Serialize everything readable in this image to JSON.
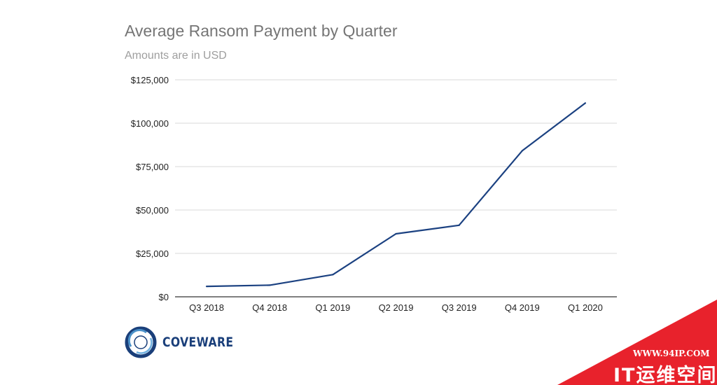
{
  "chart_data": {
    "type": "line",
    "title": "Average Ransom Payment by Quarter",
    "subtitle": "Amounts are in USD",
    "categories": [
      "Q3 2018",
      "Q4 2018",
      "Q1 2019",
      "Q2 2019",
      "Q3 2019",
      "Q4 2019",
      "Q1 2020"
    ],
    "series": [
      {
        "values": [
          6000,
          6700,
          12800,
          36300,
          41200,
          84100,
          111600
        ],
        "color": "#1b4181"
      }
    ],
    "ylim": [
      0,
      125000
    ],
    "yticks": [
      0,
      25000,
      50000,
      75000,
      100000,
      125000
    ],
    "ytick_labels": [
      "$0",
      "$25,000",
      "$50,000",
      "$75,000",
      "$100,000",
      "$125,000"
    ],
    "grid": true,
    "legend": "none"
  },
  "logo": {
    "text": "COVEWARE",
    "icon": "coveware-ring-logo-icon",
    "color": "#1a3f7a"
  },
  "watermark": {
    "url": "WWW.94IP.COM",
    "name": "IT运维空间",
    "color": "#e8222c"
  }
}
